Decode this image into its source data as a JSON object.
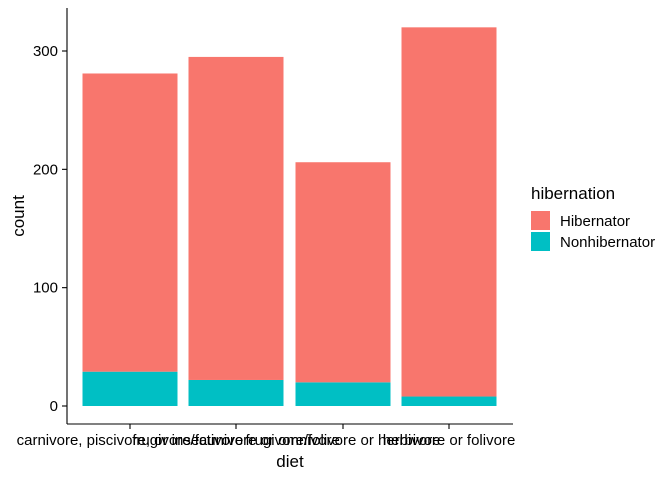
{
  "chart_data": {
    "type": "bar",
    "stacked": true,
    "xlabel": "diet",
    "ylabel": "count",
    "categories": [
      "carnivore, piscivore, or insectivore",
      "frugivore/faunivore or omnivore",
      "frugivore/folivore or herbivore",
      "herbivore or folivore"
    ],
    "yticks": [
      0,
      100,
      200,
      300
    ],
    "ylim": [
      -12,
      335
    ],
    "series": [
      {
        "name": "Hibernator",
        "color": "#F8766D",
        "values": [
          252,
          273,
          186,
          312
        ]
      },
      {
        "name": "Nonhibernator",
        "color": "#00BFC4",
        "values": [
          29,
          22,
          20,
          8
        ]
      }
    ],
    "legend": {
      "title": "hibernation",
      "position": "right",
      "entries": [
        "Hibernator",
        "Nonhibernator"
      ]
    },
    "grid": false
  }
}
